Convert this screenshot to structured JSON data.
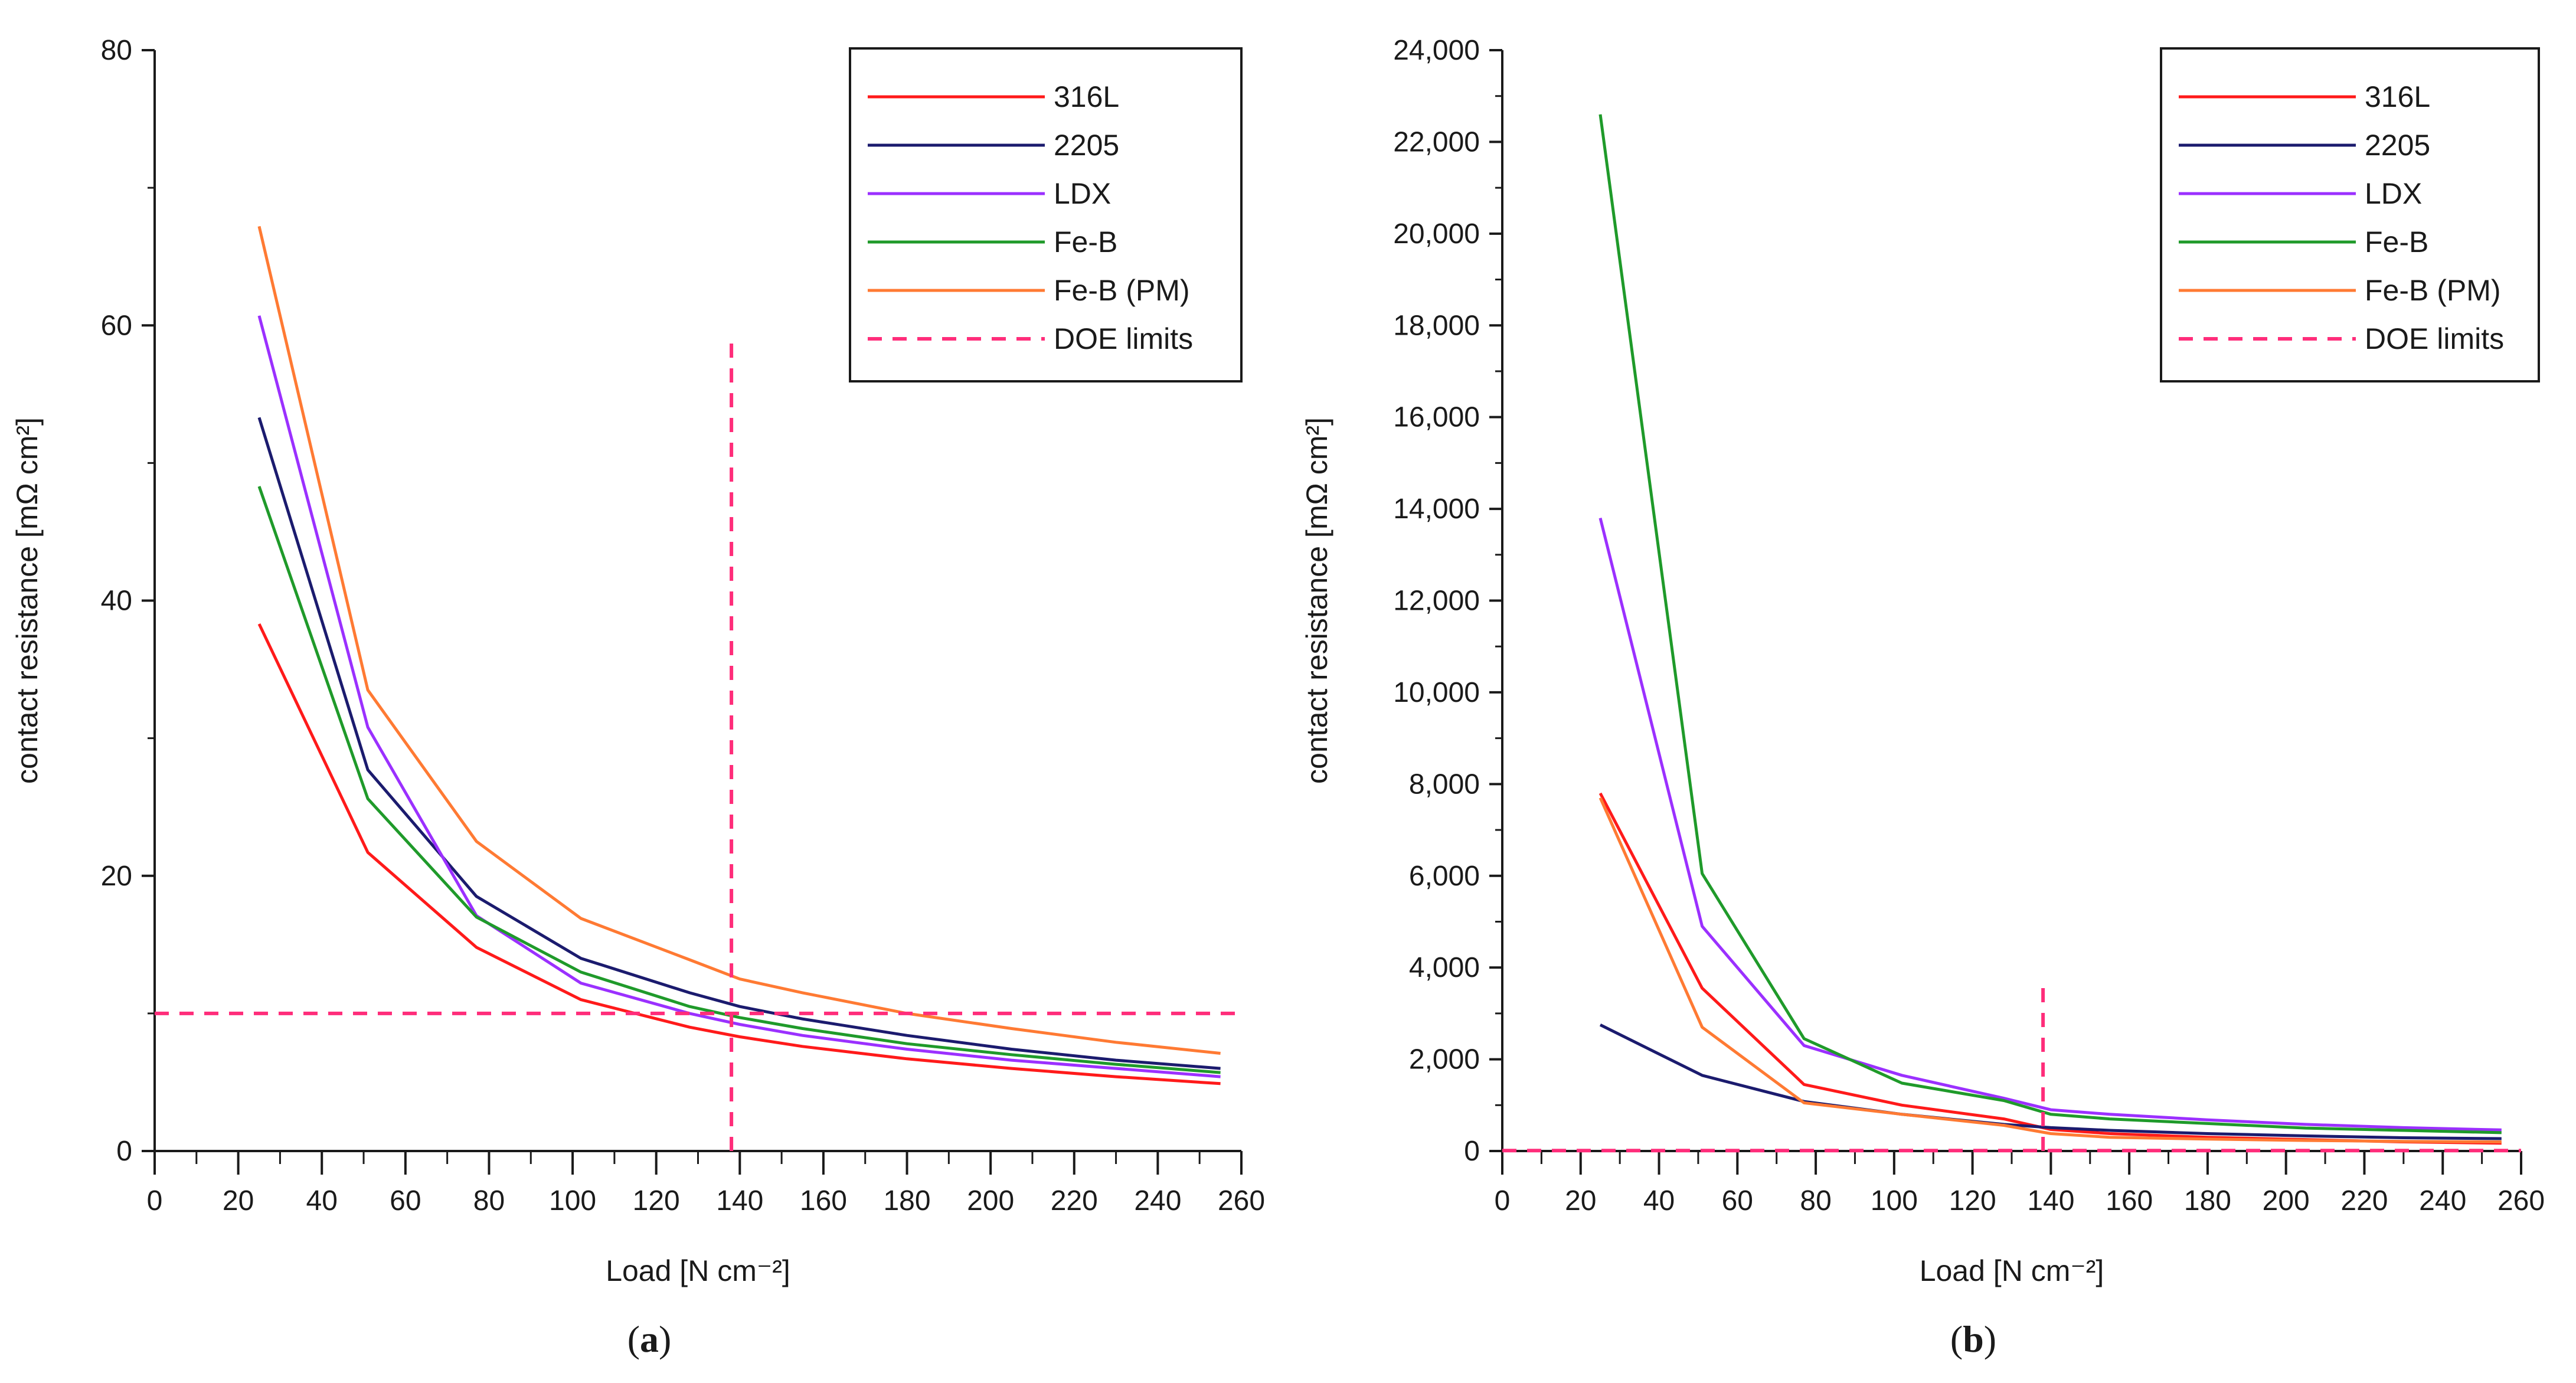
{
  "panels": [
    {
      "label_open": "(",
      "label_letter": "a",
      "label_close": ")"
    },
    {
      "label_open": "(",
      "label_letter": "b",
      "label_close": ")"
    }
  ],
  "chart_data": [
    {
      "type": "line",
      "title": "",
      "xlabel": "Load [N cm⁻²]",
      "ylabel": "contact resistance [mΩ cm²]",
      "xlim": [
        0,
        260
      ],
      "ylim": [
        0,
        80
      ],
      "xticks": [
        0,
        20,
        40,
        60,
        80,
        100,
        120,
        140,
        160,
        180,
        200,
        220,
        240,
        260
      ],
      "xtick_labels": [
        "0",
        "20",
        "40",
        "60",
        "80",
        "100",
        "120",
        "140",
        "160",
        "180",
        "200",
        "220",
        "240",
        "260"
      ],
      "yticks": [
        0,
        20,
        40,
        60,
        80
      ],
      "ytick_labels": [
        "0",
        "20",
        "40",
        "60",
        "80"
      ],
      "grid": false,
      "legend_position": "top-right",
      "series": [
        {
          "name": "316L",
          "color": "#ff1a1a",
          "style": "solid",
          "x": [
            25,
            51,
            77,
            102,
            128,
            140,
            155,
            180,
            205,
            230,
            255
          ],
          "y": [
            38.3,
            21.7,
            14.8,
            11.0,
            9.0,
            8.3,
            7.6,
            6.7,
            6.0,
            5.4,
            4.9
          ]
        },
        {
          "name": "2205",
          "color": "#1b1b6e",
          "style": "solid",
          "x": [
            25,
            51,
            77,
            102,
            128,
            140,
            155,
            180,
            205,
            230,
            255
          ],
          "y": [
            53.3,
            27.7,
            18.5,
            14.0,
            11.5,
            10.5,
            9.6,
            8.4,
            7.4,
            6.6,
            6.0
          ]
        },
        {
          "name": "LDX",
          "color": "#9b30ff",
          "style": "solid",
          "x": [
            25,
            51,
            77,
            102,
            128,
            140,
            155,
            180,
            205,
            230,
            255
          ],
          "y": [
            60.7,
            30.8,
            17.1,
            12.2,
            10.0,
            9.2,
            8.4,
            7.4,
            6.6,
            6.0,
            5.4
          ]
        },
        {
          "name": "Fe-B",
          "color": "#1f9a2a",
          "style": "solid",
          "x": [
            25,
            51,
            77,
            102,
            128,
            140,
            155,
            180,
            205,
            230,
            255
          ],
          "y": [
            48.3,
            25.6,
            17.0,
            13.0,
            10.5,
            9.7,
            8.9,
            7.8,
            7.0,
            6.3,
            5.7
          ]
        },
        {
          "name": "Fe-B (PM)",
          "color": "#ff7a33",
          "style": "solid",
          "x": [
            25,
            51,
            77,
            102,
            128,
            140,
            155,
            180,
            205,
            230,
            255
          ],
          "y": [
            67.2,
            33.5,
            22.5,
            16.9,
            13.9,
            12.5,
            11.5,
            10.0,
            8.9,
            7.9,
            7.1
          ]
        },
        {
          "name": "DOE limits",
          "color": "#ff2d7a",
          "style": "dashed",
          "segments": [
            {
              "x": [
                0,
                260
              ],
              "y": [
                10,
                10
              ]
            },
            {
              "x": [
                138,
                138
              ],
              "y": [
                0,
                59
              ]
            }
          ]
        }
      ]
    },
    {
      "type": "line",
      "title": "",
      "xlabel": "Load [N cm⁻²]",
      "ylabel": "contact resistance [mΩ cm²]",
      "xlim": [
        0,
        260
      ],
      "ylim": [
        0,
        24000
      ],
      "xticks": [
        0,
        20,
        40,
        60,
        80,
        100,
        120,
        140,
        160,
        180,
        200,
        220,
        240,
        260
      ],
      "xtick_labels": [
        "0",
        "20",
        "40",
        "60",
        "80",
        "100",
        "120",
        "140",
        "160",
        "180",
        "200",
        "220",
        "240",
        "260"
      ],
      "yticks": [
        0,
        2000,
        4000,
        6000,
        8000,
        10000,
        12000,
        14000,
        16000,
        18000,
        20000,
        22000,
        24000
      ],
      "ytick_labels": [
        "0",
        "2,000",
        "4,000",
        "6,000",
        "8,000",
        "10,000",
        "12,000",
        "14,000",
        "16,000",
        "18,000",
        "20,000",
        "22,000",
        "24,000"
      ],
      "grid": false,
      "legend_position": "top-right",
      "series": [
        {
          "name": "316L",
          "color": "#ff1a1a",
          "style": "solid",
          "x": [
            25,
            51,
            77,
            102,
            128,
            140,
            155,
            180,
            205,
            230,
            255
          ],
          "y": [
            7800,
            3550,
            1450,
            1000,
            700,
            470,
            380,
            300,
            250,
            200,
            170
          ]
        },
        {
          "name": "2205",
          "color": "#1b1b6e",
          "style": "solid",
          "x": [
            25,
            51,
            77,
            102,
            128,
            140,
            155,
            180,
            205,
            230,
            255
          ],
          "y": [
            2750,
            1650,
            1080,
            800,
            580,
            510,
            450,
            380,
            330,
            290,
            270
          ]
        },
        {
          "name": "LDX",
          "color": "#9b30ff",
          "style": "solid",
          "x": [
            25,
            51,
            77,
            102,
            128,
            140,
            155,
            180,
            205,
            230,
            255
          ],
          "y": [
            13800,
            4900,
            2300,
            1650,
            1150,
            900,
            800,
            680,
            580,
            510,
            460
          ]
        },
        {
          "name": "Fe-B",
          "color": "#1f9a2a",
          "style": "solid",
          "x": [
            25,
            51,
            77,
            102,
            128,
            140,
            155,
            180,
            205,
            230,
            255
          ],
          "y": [
            22600,
            6050,
            2450,
            1480,
            1100,
            800,
            700,
            600,
            500,
            450,
            400
          ]
        },
        {
          "name": "Fe-B (PM)",
          "color": "#ff7a33",
          "style": "solid",
          "x": [
            25,
            51,
            77,
            102,
            128,
            140,
            155,
            180,
            205,
            230,
            255
          ],
          "y": [
            7700,
            2700,
            1050,
            800,
            560,
            380,
            300,
            260,
            230,
            210,
            200
          ]
        },
        {
          "name": "DOE limits",
          "color": "#ff2d7a",
          "style": "dashed",
          "segments": [
            {
              "x": [
                0,
                260
              ],
              "y": [
                10,
                10
              ]
            },
            {
              "x": [
                138,
                138
              ],
              "y": [
                0,
                3600
              ]
            }
          ]
        }
      ]
    }
  ]
}
